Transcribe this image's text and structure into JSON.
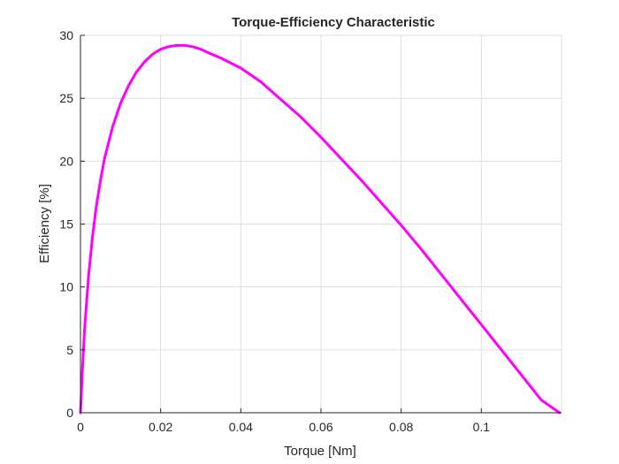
{
  "chart_data": {
    "type": "line",
    "title": "Torque-Efficiency Characteristic",
    "xlabel": "Torque [Nm]",
    "ylabel": "Efficiency [%]",
    "xlim": [
      0,
      0.12
    ],
    "ylim": [
      0,
      30
    ],
    "xticks": [
      0,
      0.02,
      0.04,
      0.06,
      0.08,
      0.1
    ],
    "xtick_labels": [
      "0",
      "0.02",
      "0.04",
      "0.06",
      "0.08",
      "0.1"
    ],
    "yticks": [
      0,
      5,
      10,
      15,
      20,
      25,
      30
    ],
    "ytick_labels": [
      "0",
      "5",
      "10",
      "15",
      "20",
      "25",
      "30"
    ],
    "grid": true,
    "series": [
      {
        "color": "#ff00ff",
        "x": [
          0,
          0.0005,
          0.001,
          0.002,
          0.003,
          0.004,
          0.005,
          0.006,
          0.008,
          0.01,
          0.012,
          0.014,
          0.016,
          0.018,
          0.02,
          0.022,
          0.024,
          0.026,
          0.028,
          0.03,
          0.032,
          0.035,
          0.04,
          0.045,
          0.05,
          0.055,
          0.06,
          0.065,
          0.07,
          0.075,
          0.08,
          0.085,
          0.09,
          0.095,
          0.1,
          0.105,
          0.11,
          0.115,
          0.1195
        ],
        "y": [
          0,
          3.5,
          6.5,
          10.8,
          14.0,
          16.5,
          18.5,
          20.2,
          22.7,
          24.6,
          26.0,
          27.1,
          27.9,
          28.5,
          28.9,
          29.1,
          29.2,
          29.2,
          29.1,
          28.9,
          28.6,
          28.2,
          27.4,
          26.3,
          24.9,
          23.5,
          21.9,
          20.2,
          18.5,
          16.7,
          14.9,
          13.0,
          11.0,
          9.0,
          7.0,
          5.0,
          3.0,
          1.0,
          0
        ]
      }
    ]
  }
}
